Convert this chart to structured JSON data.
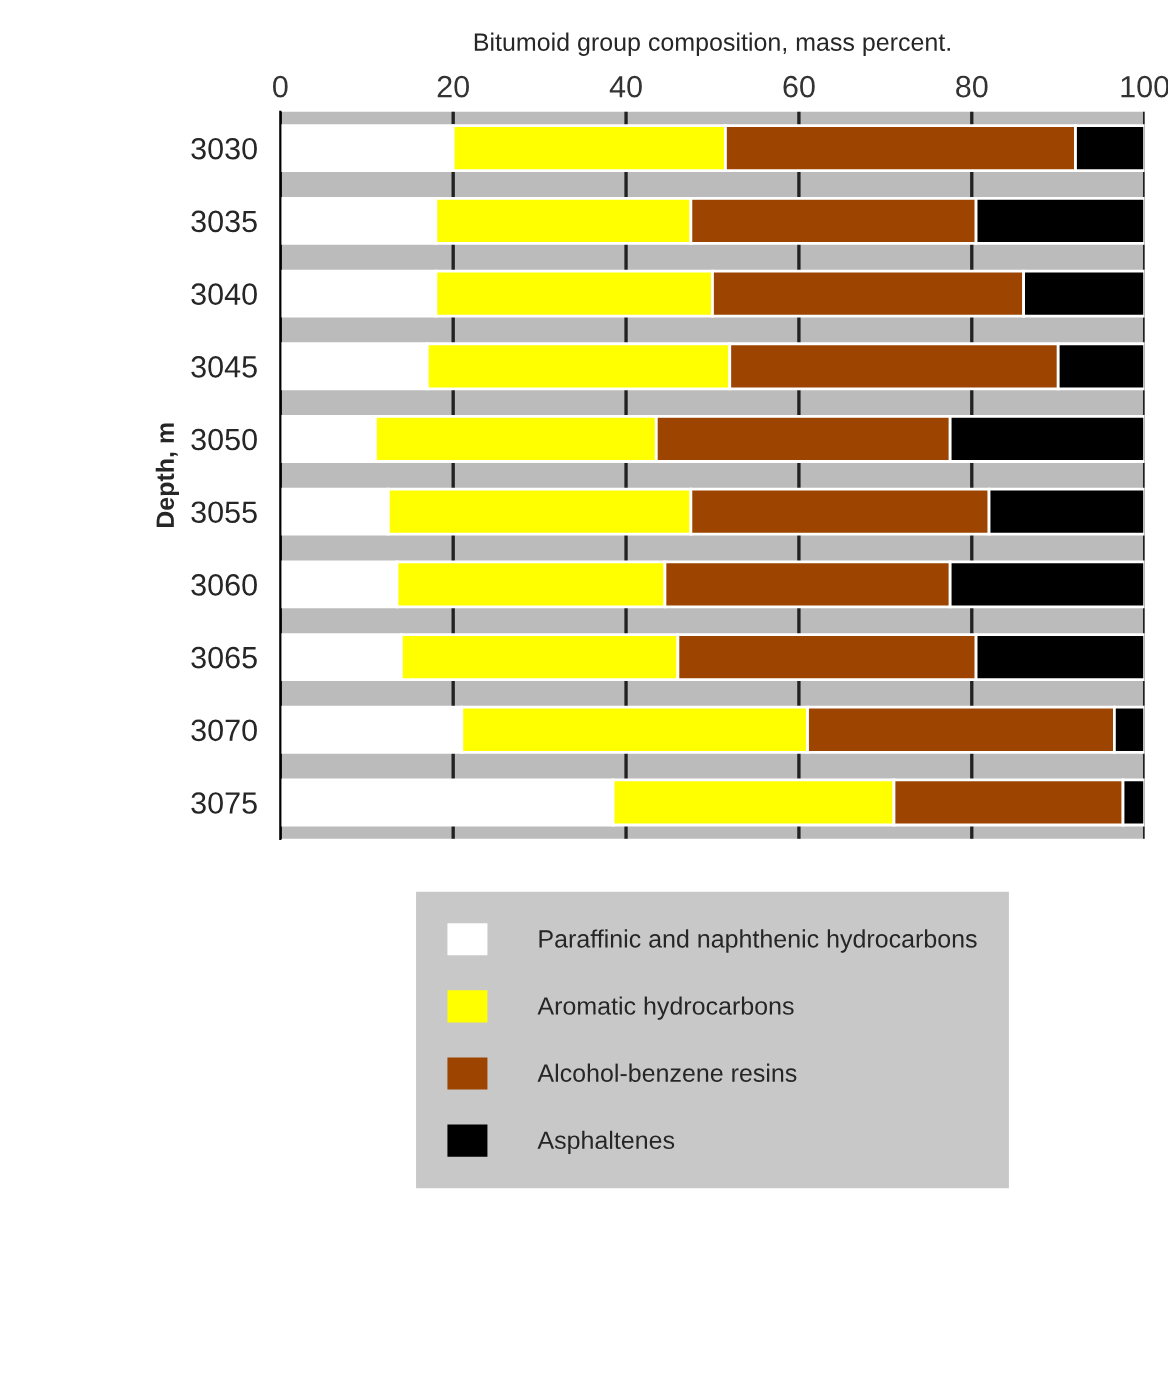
{
  "chart_data": {
    "type": "bar",
    "orientation": "horizontal",
    "stacked": true,
    "title": "Bitumoid group composition, mass percent.",
    "ylabel": "Depth, m",
    "categories": [
      "3030",
      "3035",
      "3040",
      "3045",
      "3050",
      "3055",
      "3060",
      "3065",
      "3070",
      "3075"
    ],
    "series": [
      {
        "name": "Paraffinic and naphthenic hydrocarbons",
        "color": "#ffffff",
        "values": [
          20,
          18,
          18,
          17,
          11,
          12.5,
          13.5,
          14,
          21,
          38.5
        ]
      },
      {
        "name": "Aromatic hydrocarbons",
        "color": "#ffff00",
        "values": [
          31.5,
          29.5,
          32,
          35,
          32.5,
          35,
          31,
          32,
          40,
          32.5
        ]
      },
      {
        "name": "Alcohol-benzene resins",
        "color": "#9c4400",
        "values": [
          40.5,
          33,
          36,
          38,
          34,
          34.5,
          33,
          34.5,
          35.5,
          26.5
        ]
      },
      {
        "name": "Asphaltenes",
        "color": "#000000",
        "values": [
          8,
          19.5,
          14,
          10,
          22.5,
          18,
          22.5,
          19.5,
          3.5,
          2.5
        ]
      }
    ],
    "xlim": [
      0,
      100
    ],
    "xticks": [
      0,
      20,
      40,
      60,
      80,
      100
    ],
    "grid": "x",
    "legend": "bottom"
  }
}
